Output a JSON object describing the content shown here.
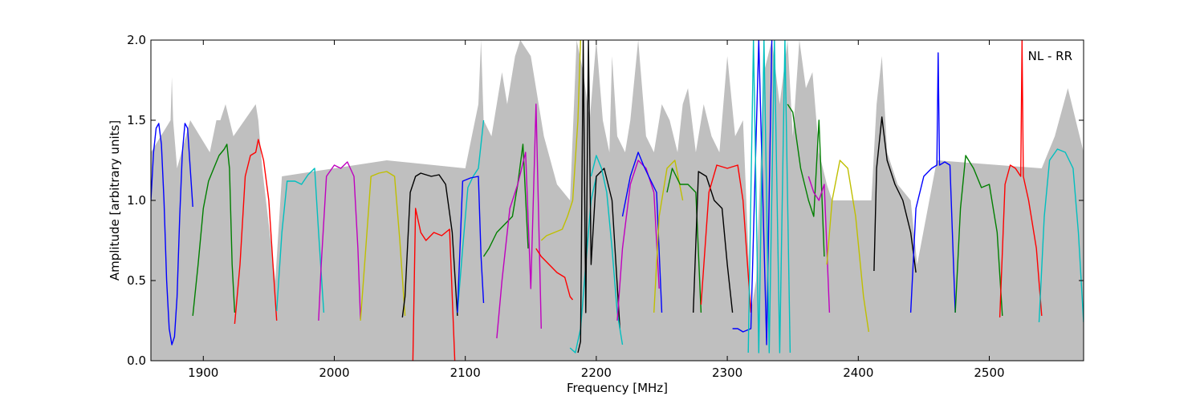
{
  "chart_data": {
    "type": "line",
    "title": "",
    "annotation": "NL - RR",
    "xlabel": "Frequency [MHz]",
    "ylabel": "Amplitude [arbitrary units]",
    "xlim": [
      1860,
      2572
    ],
    "ylim": [
      0,
      2.0
    ],
    "xticks": [
      1900,
      2000,
      2100,
      2200,
      2300,
      2400,
      2500
    ],
    "yticks": [
      0.0,
      0.5,
      1.0,
      1.5,
      2.0
    ],
    "xtick_labels": [
      "1900",
      "2000",
      "2100",
      "2200",
      "2300",
      "2400",
      "2500"
    ],
    "ytick_labels": [
      "0.0",
      "0.5",
      "1.0",
      "1.5",
      "2.0"
    ],
    "grid": false,
    "legend": "none",
    "colors": {
      "blue": "#0000ff",
      "green": "#007f00",
      "red": "#ff0000",
      "cyan": "#00bfbf",
      "magenta": "#bf00bf",
      "olive": "#bfbf00",
      "black": "#000000",
      "grey": "#bfbfbf"
    },
    "background_envelope": {
      "color": "grey",
      "x": [
        1860,
        1875,
        1876,
        1877,
        1880,
        1890,
        1905,
        1910,
        1913,
        1917,
        1920,
        1923,
        1940,
        1942,
        1945,
        1955,
        1960,
        2040,
        2100,
        2105,
        2110,
        2112,
        2114,
        2120,
        2128,
        2132,
        2138,
        2142,
        2150,
        2160,
        2170,
        2180,
        2185,
        2190,
        2195,
        2200,
        2205,
        2210,
        2212,
        2216,
        2222,
        2226,
        2232,
        2238,
        2244,
        2250,
        2256,
        2262,
        2266,
        2270,
        2276,
        2282,
        2288,
        2294,
        2300,
        2306,
        2312,
        2318,
        2322,
        2328,
        2334,
        2340,
        2346,
        2350,
        2355,
        2360,
        2365,
        2370,
        2373,
        2376,
        2380,
        2410,
        2414,
        2418,
        2422,
        2430,
        2440,
        2445,
        2460,
        2540,
        2550,
        2560,
        2572
      ],
      "y": [
        1.3,
        1.5,
        1.77,
        1.5,
        1.2,
        1.5,
        1.3,
        1.5,
        1.5,
        1.6,
        1.5,
        1.4,
        1.6,
        1.5,
        1.2,
        0.5,
        1.15,
        1.25,
        1.2,
        1.4,
        1.6,
        2.0,
        1.5,
        1.4,
        1.8,
        1.6,
        1.9,
        2.0,
        1.9,
        1.4,
        1.1,
        1.0,
        2.0,
        1.8,
        1.5,
        2.0,
        1.5,
        1.3,
        1.9,
        1.4,
        1.3,
        1.5,
        2.0,
        1.4,
        1.3,
        1.6,
        1.5,
        1.3,
        1.6,
        1.7,
        1.3,
        1.6,
        1.4,
        1.3,
        1.9,
        1.4,
        1.5,
        0.3,
        0.5,
        1.8,
        2.0,
        1.6,
        2.0,
        1.4,
        2.0,
        1.7,
        1.8,
        1.3,
        1.2,
        1.1,
        1.0,
        1.0,
        1.6,
        1.9,
        1.3,
        1.1,
        1.0,
        0.6,
        1.25,
        1.2,
        1.4,
        1.7,
        1.3
      ]
    },
    "series": [
      {
        "color": "blue",
        "x": [
          1860,
          1862,
          1864,
          1866,
          1868,
          1870,
          1872,
          1874,
          1876,
          1878,
          1880,
          1882,
          1884,
          1886,
          1888,
          1890,
          1892
        ],
        "y": [
          1.0,
          1.3,
          1.45,
          1.48,
          1.35,
          1.0,
          0.5,
          0.2,
          0.1,
          0.15,
          0.4,
          0.9,
          1.3,
          1.48,
          1.45,
          1.2,
          0.96
        ]
      },
      {
        "color": "green",
        "x": [
          1892,
          1896,
          1900,
          1904,
          1908,
          1912,
          1916,
          1918,
          1920,
          1922,
          1924
        ],
        "y": [
          0.28,
          0.6,
          0.95,
          1.12,
          1.2,
          1.28,
          1.32,
          1.35,
          1.2,
          0.6,
          0.3
        ]
      },
      {
        "color": "red",
        "x": [
          1924,
          1928,
          1932,
          1936,
          1940,
          1942,
          1946,
          1950,
          1954,
          1956
        ],
        "y": [
          0.23,
          0.6,
          1.15,
          1.28,
          1.3,
          1.38,
          1.25,
          1.0,
          0.5,
          0.25
        ]
      },
      {
        "color": "cyan",
        "x": [
          1956,
          1960,
          1964,
          1970,
          1975,
          1980,
          1985,
          1988,
          1992
        ],
        "y": [
          0.31,
          0.8,
          1.12,
          1.12,
          1.1,
          1.16,
          1.2,
          0.8,
          0.3
        ]
      },
      {
        "color": "magenta",
        "x": [
          1988,
          1990,
          1994,
          2000,
          2005,
          2010,
          2015,
          2018,
          2020
        ],
        "y": [
          0.25,
          0.6,
          1.15,
          1.22,
          1.2,
          1.24,
          1.15,
          0.7,
          0.26
        ]
      },
      {
        "color": "olive",
        "x": [
          2020,
          2024,
          2028,
          2034,
          2040,
          2046,
          2050,
          2054
        ],
        "y": [
          0.25,
          0.7,
          1.15,
          1.17,
          1.18,
          1.15,
          0.75,
          0.28
        ]
      },
      {
        "color": "black",
        "x": [
          2052,
          2054,
          2058,
          2062,
          2066,
          2070,
          2074,
          2080,
          2085,
          2090,
          2094
        ],
        "y": [
          0.27,
          0.4,
          1.05,
          1.15,
          1.17,
          1.16,
          1.15,
          1.16,
          1.1,
          0.8,
          0.28
        ]
      },
      {
        "color": "red",
        "x": [
          2060,
          2062,
          2066,
          2070,
          2076,
          2082,
          2088,
          2092
        ],
        "y": [
          0.0,
          0.95,
          0.8,
          0.75,
          0.8,
          0.78,
          0.82,
          0.0
        ]
      },
      {
        "color": "cyan",
        "x": [
          2094,
          2098,
          2102,
          2106,
          2110,
          2114
        ],
        "y": [
          0.3,
          0.7,
          1.08,
          1.15,
          1.2,
          1.5
        ]
      },
      {
        "color": "blue",
        "x": [
          2094,
          2098,
          2104,
          2110,
          2112,
          2114
        ],
        "y": [
          0.3,
          1.12,
          1.14,
          1.15,
          0.65,
          0.36
        ]
      },
      {
        "color": "green",
        "x": [
          2114,
          2118,
          2124,
          2130,
          2136,
          2140,
          2144,
          2148
        ],
        "y": [
          0.65,
          0.7,
          0.8,
          0.85,
          0.9,
          1.1,
          1.35,
          0.7
        ]
      },
      {
        "color": "magenta",
        "x": [
          2124,
          2128,
          2134,
          2140,
          2146,
          2150,
          2154,
          2158
        ],
        "y": [
          0.14,
          0.5,
          0.95,
          1.1,
          1.3,
          0.45,
          1.6,
          0.2
        ]
      },
      {
        "color": "olive",
        "x": [
          2158,
          2162,
          2168,
          2174,
          2178,
          2182,
          2186,
          2188
        ],
        "y": [
          0.75,
          0.78,
          0.8,
          0.82,
          0.9,
          1.0,
          1.5,
          2.0
        ]
      },
      {
        "color": "red",
        "x": [
          2154,
          2158,
          2164,
          2170,
          2176,
          2180,
          2182
        ],
        "y": [
          0.7,
          0.65,
          0.6,
          0.55,
          0.52,
          0.4,
          0.38
        ]
      },
      {
        "color": "cyan",
        "x": [
          2180,
          2184,
          2188,
          2192,
          2196,
          2200
        ],
        "y": [
          0.08,
          0.05,
          0.2,
          0.6,
          1.0,
          1.15
        ]
      },
      {
        "color": "black",
        "x": [
          2186,
          2188,
          2190,
          2192,
          2194,
          2196,
          2200,
          2206,
          2212,
          2218
        ],
        "y": [
          0.05,
          0.12,
          2.0,
          0.3,
          2.0,
          0.6,
          1.15,
          1.2,
          1.0,
          0.2
        ]
      },
      {
        "color": "cyan",
        "x": [
          2196,
          2200,
          2204,
          2208,
          2212,
          2216,
          2220
        ],
        "y": [
          1.15,
          1.28,
          1.2,
          1.05,
          0.7,
          0.3,
          0.1
        ]
      },
      {
        "color": "magenta",
        "x": [
          2216,
          2220,
          2226,
          2232,
          2238,
          2244,
          2248
        ],
        "y": [
          0.25,
          0.7,
          1.1,
          1.25,
          1.2,
          1.05,
          0.45
        ]
      },
      {
        "color": "blue",
        "x": [
          2220,
          2226,
          2232,
          2236,
          2240,
          2246,
          2250
        ],
        "y": [
          0.9,
          1.15,
          1.3,
          1.22,
          1.15,
          1.05,
          0.3
        ]
      },
      {
        "color": "olive",
        "x": [
          2244,
          2248,
          2254,
          2260,
          2266
        ],
        "y": [
          0.3,
          0.9,
          1.2,
          1.25,
          1.0
        ]
      },
      {
        "color": "green",
        "x": [
          2254,
          2258,
          2264,
          2270,
          2276,
          2280
        ],
        "y": [
          1.05,
          1.2,
          1.1,
          1.1,
          1.05,
          0.3
        ]
      },
      {
        "color": "black",
        "x": [
          2274,
          2278,
          2284,
          2290,
          2296,
          2300,
          2304
        ],
        "y": [
          0.3,
          1.18,
          1.15,
          1.0,
          0.95,
          0.6,
          0.3
        ]
      },
      {
        "color": "red",
        "x": [
          2280,
          2286,
          2292,
          2300,
          2308,
          2312,
          2318
        ],
        "y": [
          0.35,
          1.05,
          1.22,
          1.2,
          1.22,
          1.0,
          0.3
        ]
      },
      {
        "color": "blue",
        "x": [
          2304,
          2308,
          2312,
          2318,
          2324,
          2330,
          2334
        ],
        "y": [
          0.2,
          0.2,
          0.18,
          0.2,
          2.0,
          0.1,
          2.0
        ]
      },
      {
        "color": "cyan",
        "x": [
          2316,
          2320,
          2324,
          2328,
          2332,
          2336,
          2340,
          2344,
          2348
        ],
        "y": [
          0.05,
          2.0,
          0.05,
          2.0,
          0.05,
          2.0,
          0.05,
          2.0,
          0.05
        ]
      },
      {
        "color": "green",
        "x": [
          2346,
          2350,
          2356,
          2362,
          2366,
          2370,
          2374
        ],
        "y": [
          1.6,
          1.55,
          1.2,
          1.0,
          0.9,
          1.5,
          0.65
        ]
      },
      {
        "color": "magenta",
        "x": [
          2362,
          2366,
          2370,
          2374,
          2378
        ],
        "y": [
          1.15,
          1.05,
          1.0,
          1.1,
          0.3
        ]
      },
      {
        "color": "olive",
        "x": [
          2376,
          2380,
          2386,
          2392,
          2398,
          2404,
          2408
        ],
        "y": [
          0.6,
          1.0,
          1.25,
          1.2,
          0.9,
          0.4,
          0.18
        ]
      },
      {
        "color": "black",
        "x": [
          2412,
          2414,
          2418,
          2422,
          2428,
          2434,
          2440,
          2444
        ],
        "y": [
          0.56,
          1.2,
          1.52,
          1.25,
          1.1,
          1.0,
          0.8,
          0.55
        ]
      },
      {
        "color": "blue",
        "x": [
          2440,
          2444,
          2450,
          2456,
          2460,
          2461,
          2462,
          2466,
          2470,
          2474
        ],
        "y": [
          0.3,
          0.95,
          1.15,
          1.2,
          1.22,
          1.92,
          1.22,
          1.24,
          1.22,
          0.3
        ]
      },
      {
        "color": "green",
        "x": [
          2474,
          2478,
          2482,
          2488,
          2494,
          2500,
          2506,
          2510
        ],
        "y": [
          0.3,
          0.95,
          1.28,
          1.2,
          1.08,
          1.1,
          0.8,
          0.28
        ]
      },
      {
        "color": "red",
        "x": [
          2508,
          2512,
          2516,
          2520,
          2524,
          2525,
          2526,
          2530,
          2536,
          2540
        ],
        "y": [
          0.27,
          1.1,
          1.22,
          1.2,
          1.15,
          2.0,
          1.15,
          1.0,
          0.7,
          0.28
        ]
      },
      {
        "color": "cyan",
        "x": [
          2538,
          2542,
          2546,
          2552,
          2558,
          2564,
          2568,
          2572
        ],
        "y": [
          0.24,
          0.9,
          1.25,
          1.32,
          1.3,
          1.2,
          0.8,
          0.24
        ]
      }
    ]
  }
}
